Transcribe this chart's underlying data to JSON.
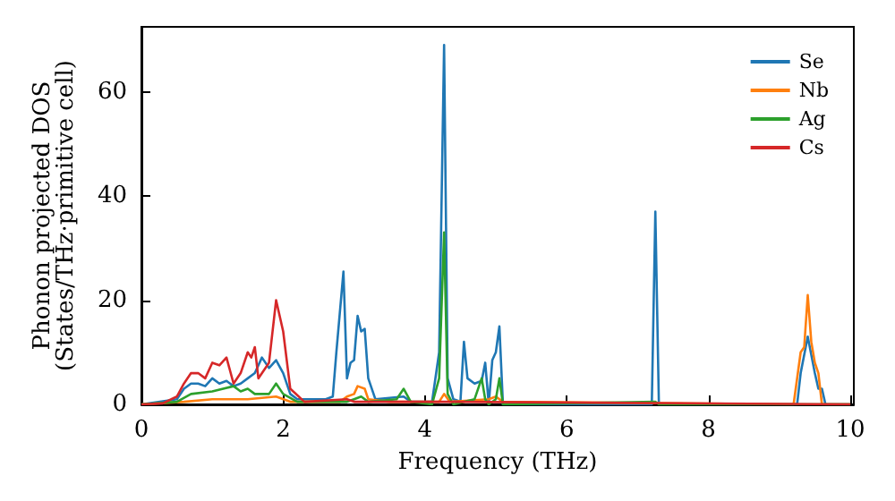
{
  "chart_data": {
    "type": "line",
    "xlabel": "Frequency (THz)",
    "ylabel": "Phonon projected DOS\n(States/THz·primitive cell)",
    "xlim": [
      0,
      10.05
    ],
    "ylim": [
      0,
      72.5
    ],
    "xticks": [
      0,
      2,
      4,
      6,
      8,
      10
    ],
    "yticks": [
      0,
      20,
      40,
      60
    ],
    "grid": false,
    "legend": "top right",
    "marker": "none",
    "line_style": "solid",
    "series": [
      {
        "name": "Se",
        "color": "#1f77b4",
        "x": [
          0,
          0.5,
          0.6,
          0.7,
          0.8,
          0.9,
          1.0,
          1.1,
          1.2,
          1.3,
          1.4,
          1.5,
          1.6,
          1.7,
          1.8,
          1.9,
          2.0,
          2.1,
          2.2,
          2.6,
          2.7,
          2.75,
          2.85,
          2.9,
          2.95,
          3.0,
          3.05,
          3.1,
          3.15,
          3.2,
          3.3,
          3.7,
          3.8,
          4.1,
          4.2,
          4.27,
          4.32,
          4.4,
          4.5,
          4.55,
          4.6,
          4.7,
          4.8,
          4.85,
          4.9,
          4.95,
          5.0,
          5.05,
          5.1,
          7.2,
          7.25,
          7.3,
          9.25,
          9.3,
          9.4,
          9.5,
          9.55,
          9.6,
          9.65,
          10
        ],
        "values": [
          0,
          1,
          3,
          4,
          4,
          3.5,
          5,
          4,
          4.5,
          3.5,
          4,
          5,
          6,
          9,
          7,
          8.5,
          6,
          2,
          1,
          1,
          1.5,
          10,
          25.5,
          5,
          8,
          8.5,
          17,
          14,
          14.5,
          5,
          1,
          1.5,
          0.5,
          0.5,
          10,
          69,
          5,
          1,
          0.5,
          12,
          5,
          4,
          4.5,
          8,
          0,
          8.5,
          10,
          15,
          0,
          0,
          37,
          0,
          0,
          6,
          13,
          6,
          3,
          3,
          0,
          0
        ]
      },
      {
        "name": "Nb",
        "color": "#ff7f0e",
        "x": [
          0,
          0.6,
          1.0,
          1.5,
          1.9,
          2.1,
          2.8,
          2.9,
          3.0,
          3.05,
          3.15,
          3.2,
          3.5,
          4.2,
          4.27,
          4.35,
          4.9,
          5.0,
          5.1,
          9.2,
          9.3,
          9.35,
          9.4,
          9.45,
          9.5,
          9.55,
          9.6,
          10
        ],
        "values": [
          0,
          0.5,
          1,
          1,
          1.5,
          0.5,
          0.5,
          1.5,
          2,
          3.5,
          3,
          1,
          0.5,
          0.5,
          2,
          0.5,
          1,
          1.5,
          0.5,
          0,
          10,
          11,
          21,
          12,
          8,
          6,
          0,
          0
        ]
      },
      {
        "name": "Ag",
        "color": "#2ca02c",
        "x": [
          0,
          0.5,
          0.7,
          1.0,
          1.3,
          1.4,
          1.5,
          1.6,
          1.8,
          1.9,
          2.0,
          2.2,
          2.9,
          3.0,
          3.1,
          3.2,
          3.6,
          3.7,
          3.8,
          4.1,
          4.2,
          4.27,
          4.32,
          4.4,
          4.7,
          4.8,
          4.85,
          4.9,
          5.0,
          5.05,
          5.1,
          7.25,
          7.3,
          10
        ],
        "values": [
          0,
          0.5,
          2,
          2.5,
          3.5,
          2.5,
          3,
          2,
          2,
          4,
          2,
          0.5,
          0.5,
          1,
          1.5,
          0.5,
          1,
          3,
          0.5,
          0,
          5,
          33,
          2,
          0,
          1,
          5,
          1,
          0,
          1,
          5,
          0,
          0.5,
          0,
          0
        ]
      },
      {
        "name": "Cs",
        "color": "#d62728",
        "x": [
          0,
          0.3,
          0.5,
          0.6,
          0.7,
          0.8,
          0.9,
          1.0,
          1.1,
          1.2,
          1.3,
          1.4,
          1.5,
          1.55,
          1.6,
          1.65,
          1.8,
          1.9,
          2.0,
          2.1,
          2.3,
          2.9,
          3.0,
          4.3,
          10
        ],
        "values": [
          0,
          0.2,
          1.5,
          4,
          6,
          6,
          5,
          8,
          7.5,
          9,
          4,
          6,
          10,
          9,
          11,
          5,
          8,
          20,
          14,
          3,
          0.5,
          1,
          0.5,
          0.5,
          0
        ]
      }
    ]
  }
}
